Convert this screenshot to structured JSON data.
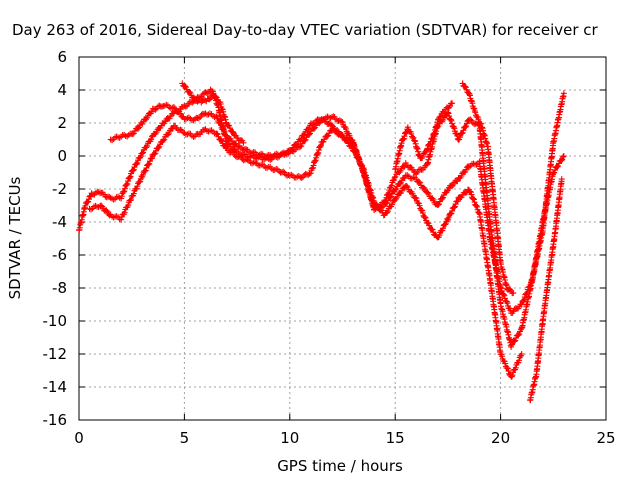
{
  "chart_data": {
    "type": "scatter",
    "title": "Day 263 of 2016, Sidereal Day-to-day VTEC variation (SDTVAR) for receiver cr",
    "xlabel": "GPS time / hours",
    "ylabel": "SDTVAR / TECUs",
    "xlim": [
      0,
      25
    ],
    "ylim": [
      -16,
      6
    ],
    "x_ticks": [
      "0",
      "5",
      "10",
      "15",
      "20",
      "25"
    ],
    "y_ticks": [
      "6",
      "4",
      "2",
      "0",
      "-2",
      "-4",
      "-6",
      "-8",
      "-10",
      "-12",
      "-14",
      "-16"
    ],
    "grid": true,
    "marker": "+",
    "color": "#ff0000",
    "series": [
      {
        "x": [
          0.0,
          0.3,
          0.6,
          1.0,
          1.5,
          2.0,
          2.5,
          3.0,
          3.5,
          4.0,
          4.5,
          5.0,
          5.5,
          6.0,
          6.3,
          6.6,
          7.0,
          7.5,
          8.0,
          8.5,
          9.0,
          9.5,
          10.0,
          10.5,
          11.0,
          11.5,
          12.0,
          12.5,
          13.0,
          13.5,
          14.0,
          14.5,
          15.0,
          15.5,
          16.0,
          16.5,
          17.0,
          17.5,
          18.0,
          18.5,
          19.0,
          19.5,
          20.0,
          20.5,
          21.0,
          21.5,
          22.0,
          22.5,
          23.0
        ],
        "y": [
          -4.5,
          -3.0,
          -2.3,
          -2.2,
          -2.6,
          -2.5,
          -1.0,
          0.2,
          1.2,
          2.0,
          2.6,
          3.0,
          3.4,
          3.8,
          4.0,
          3.0,
          0.8,
          0.2,
          0.0,
          -0.1,
          -0.2,
          0.0,
          0.3,
          1.0,
          1.9,
          2.3,
          1.8,
          1.2,
          0.8,
          -1.0,
          -3.2,
          -2.8,
          -1.2,
          -0.5,
          -1.0,
          -0.6,
          1.8,
          2.6,
          1.0,
          2.2,
          1.8,
          -4.0,
          -9.0,
          -11.5,
          -10.5,
          -7.5,
          -4.0,
          -1.0,
          0.0
        ]
      },
      {
        "x": [
          1.5,
          2.0,
          2.5,
          3.0,
          3.5,
          4.0,
          4.5,
          5.0,
          5.5,
          6.0,
          6.5,
          7.0,
          7.5,
          8.0,
          8.5,
          9.0,
          9.5,
          10.0,
          10.5,
          11.0,
          11.5,
          12.0,
          12.5,
          13.0,
          13.5,
          14.0,
          14.5,
          15.0,
          15.5,
          16.0,
          16.5,
          17.0,
          17.5,
          18.0,
          18.5,
          19.0,
          19.5,
          20.0,
          20.5,
          21.0,
          21.5,
          22.0,
          22.5,
          23.0
        ],
        "y": [
          1.0,
          1.2,
          1.3,
          2.0,
          2.8,
          3.1,
          2.9,
          2.3,
          2.2,
          2.6,
          2.4,
          1.2,
          0.6,
          0.3,
          0.1,
          0.0,
          0.1,
          0.2,
          0.6,
          1.5,
          2.2,
          2.4,
          2.0,
          0.8,
          -1.0,
          -3.2,
          -3.0,
          -2.0,
          -1.2,
          -1.4,
          -2.2,
          -3.0,
          -2.0,
          -1.4,
          -0.6,
          -0.4,
          -5.0,
          -8.0,
          -9.5,
          -9.0,
          -7.5,
          -4.5,
          0.8,
          3.8
        ]
      },
      {
        "x": [
          0.5,
          1.0,
          1.5,
          2.0,
          2.5,
          3.0,
          3.5,
          4.0,
          4.5,
          5.0,
          5.5,
          6.0,
          6.5,
          7.0,
          7.5,
          8.0,
          8.5,
          9.0,
          9.5,
          10.0,
          10.5,
          11.0,
          11.5,
          12.0,
          12.5,
          13.0,
          13.5,
          14.0,
          14.5,
          15.0,
          15.5,
          16.0,
          16.5,
          17.0,
          17.5,
          18.0,
          18.5,
          19.0,
          19.5,
          20.0,
          20.5,
          21.0
        ],
        "y": [
          -3.2,
          -3.0,
          -3.6,
          -3.8,
          -2.5,
          -1.2,
          0.0,
          1.0,
          1.8,
          1.4,
          1.2,
          1.6,
          1.4,
          0.4,
          0.0,
          -0.3,
          -0.5,
          -0.7,
          -0.9,
          -1.2,
          -1.3,
          -1.0,
          0.8,
          1.6,
          1.2,
          0.4,
          -0.8,
          -2.8,
          -3.6,
          -2.6,
          -1.8,
          -2.6,
          -4.0,
          -5.0,
          -3.8,
          -2.6,
          -2.0,
          -3.5,
          -7.5,
          -12.0,
          -13.4,
          -12.0
        ]
      },
      {
        "x": [
          4.9,
          5.2,
          5.5,
          5.8,
          6.1,
          6.4,
          6.7,
          7.0,
          7.4,
          7.8
        ],
        "y": [
          4.4,
          3.9,
          3.4,
          3.3,
          3.4,
          3.7,
          3.2,
          2.0,
          1.2,
          0.8
        ]
      },
      {
        "x": [
          15.0,
          15.3,
          15.6,
          15.9,
          16.2,
          16.5,
          16.8,
          17.1,
          17.4,
          17.7
        ],
        "y": [
          -0.8,
          0.8,
          1.7,
          1.0,
          -0.2,
          0.4,
          1.2,
          2.4,
          2.8,
          3.2
        ]
      },
      {
        "x": [
          18.2,
          18.5,
          18.8,
          19.1,
          19.4,
          19.7,
          20.0,
          20.3,
          20.6
        ],
        "y": [
          4.4,
          3.8,
          2.6,
          1.8,
          0.5,
          -3.0,
          -6.5,
          -8.0,
          -8.3
        ]
      },
      {
        "x": [
          21.4,
          21.7,
          22.0,
          22.3,
          22.6,
          22.9
        ],
        "y": [
          -14.8,
          -13.2,
          -10.0,
          -7.2,
          -4.5,
          -1.4
        ]
      }
    ]
  }
}
